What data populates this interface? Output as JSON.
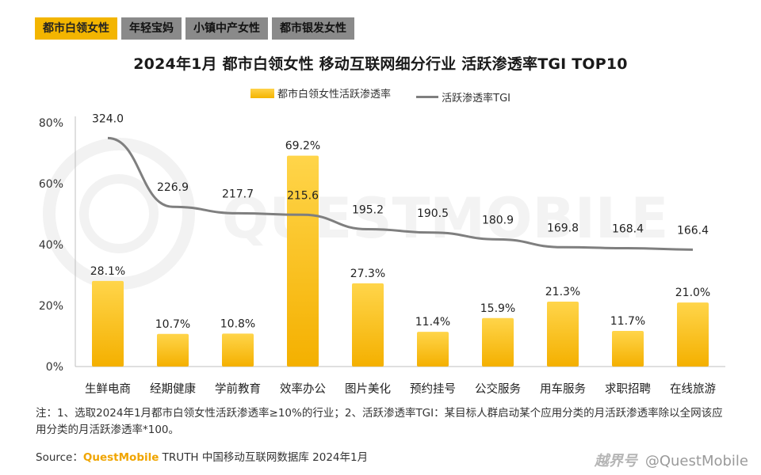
{
  "tabs": [
    "都市白领女性",
    "年轻宝妈",
    "小镇中产女性",
    "都市银发女性"
  ],
  "active_tab": 0,
  "title": "2024年1月 都市白领女性 移动互联网细分行业 活跃渗透率TGI TOP10",
  "legend": {
    "bar": "都市白领女性活跃渗透率",
    "line": "活跃渗透率TGI"
  },
  "chart_data": {
    "type": "bar",
    "categories": [
      "生鲜电商",
      "经期健康",
      "学前教育",
      "效率办公",
      "图片美化",
      "预约挂号",
      "公交服务",
      "用车服务",
      "求职招聘",
      "在线旅游"
    ],
    "series": [
      {
        "name": "都市白领女性活跃渗透率",
        "type": "bar",
        "values": [
          28.1,
          10.7,
          10.8,
          69.2,
          27.3,
          11.4,
          15.9,
          21.3,
          11.7,
          21.0
        ],
        "labels": [
          "28.1%",
          "10.7%",
          "10.8%",
          "69.2%",
          "27.3%",
          "11.4%",
          "15.9%",
          "21.3%",
          "11.7%",
          "21.0%"
        ]
      },
      {
        "name": "活跃渗透率TGI",
        "type": "line",
        "values": [
          324.0,
          226.9,
          217.7,
          215.6,
          195.2,
          190.5,
          180.9,
          169.8,
          168.4,
          166.4
        ],
        "labels": [
          "324.0",
          "226.9",
          "217.7",
          "215.6",
          "195.2",
          "190.5",
          "180.9",
          "169.8",
          "168.4",
          "166.4"
        ]
      }
    ],
    "ylim": [
      0,
      80
    ],
    "yticks": [
      "0%",
      "20%",
      "40%",
      "60%",
      "80%"
    ],
    "colors": {
      "bar": "#f6b700",
      "bar_light": "#ffd54a",
      "line": "#7f7f7f"
    }
  },
  "note": "注：1、选取2024年1月都市白领女性活跃渗透率≥10%的行业；2、活跃渗透率TGI：某目标人群启动某个应用分类的月活跃渗透率除以全网该应用分类的月活跃渗透率*100。",
  "source": {
    "prefix": "Source：",
    "brand": "QuestMobile",
    "suffix": " TRUTH 中国移动互联网数据库 2024年1月"
  },
  "watermark": {
    "logo": "越界号",
    "handle": "@QuestMobile"
  }
}
